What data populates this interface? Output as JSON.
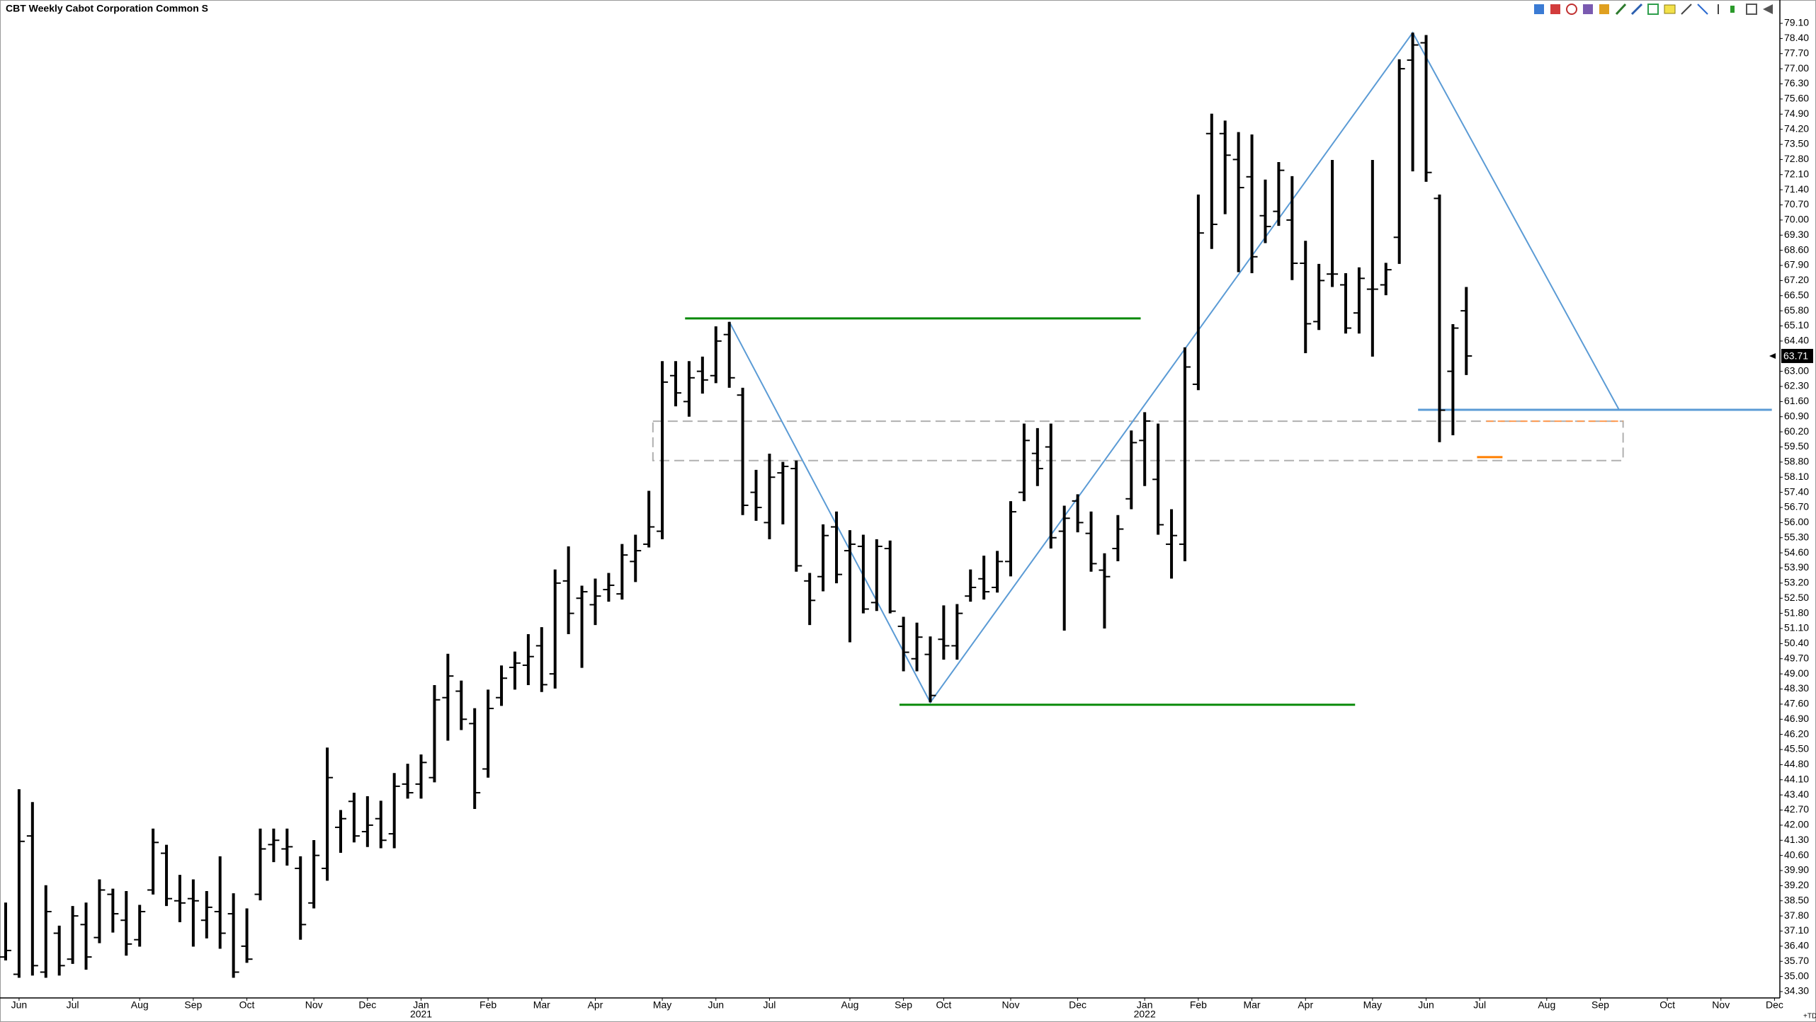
{
  "chart_data": {
    "type": "ohlc",
    "title": "CBT Weekly Cabot Corporation Common S",
    "corner_label": "+TD",
    "color": "#000000",
    "categories": [
      null,
      "Jun",
      null,
      null,
      null,
      "Jul",
      null,
      null,
      null,
      null,
      "Aug",
      null,
      null,
      null,
      "Sep",
      null,
      null,
      null,
      "Oct",
      null,
      null,
      null,
      null,
      "Nov",
      null,
      null,
      null,
      "Dec",
      null,
      null,
      null,
      "Jan",
      null,
      null,
      null,
      null,
      "Feb",
      null,
      null,
      null,
      "Mar",
      null,
      null,
      null,
      "Apr",
      null,
      null,
      null,
      null,
      "May",
      null,
      null,
      null,
      "Jun",
      null,
      null,
      null,
      "Jul",
      null,
      null,
      null,
      null,
      null,
      "Aug",
      null,
      null,
      null,
      "Sep",
      null,
      null,
      "Oct",
      null,
      null,
      null,
      null,
      "Nov",
      null,
      null,
      null,
      null,
      "Dec",
      null,
      null,
      null,
      null,
      "Jan",
      null,
      null,
      null,
      "Feb",
      null,
      null,
      null,
      "Mar",
      null,
      null,
      null,
      "Apr",
      null,
      null,
      null,
      null,
      "May",
      null,
      null,
      null,
      "Jun",
      null,
      null,
      null,
      "Jul",
      null,
      null,
      null,
      null,
      "Aug",
      null,
      null,
      null,
      "Sep",
      null,
      null,
      null,
      null,
      "Oct",
      null,
      null,
      null,
      "Nov",
      null,
      null,
      null,
      "Dec"
    ],
    "year_labels": [
      null,
      null,
      null,
      null,
      null,
      null,
      null,
      null,
      null,
      null,
      null,
      null,
      null,
      null,
      null,
      null,
      null,
      null,
      null,
      null,
      null,
      null,
      null,
      null,
      null,
      null,
      null,
      null,
      null,
      null,
      null,
      "2021",
      null,
      null,
      null,
      null,
      null,
      null,
      null,
      null,
      null,
      null,
      null,
      null,
      null,
      null,
      null,
      null,
      null,
      null,
      null,
      null,
      null,
      null,
      null,
      null,
      null,
      null,
      null,
      null,
      null,
      null,
      null,
      null,
      null,
      null,
      null,
      null,
      null,
      null,
      null,
      null,
      null,
      null,
      null,
      null,
      null,
      null,
      null,
      null,
      null,
      null,
      null,
      null,
      null,
      "2022",
      null,
      null,
      null,
      null,
      null,
      null,
      null,
      null,
      null,
      null,
      null,
      null,
      null,
      null,
      null,
      null,
      null,
      null,
      null,
      null,
      null,
      null,
      null,
      null,
      null,
      null,
      null,
      null,
      null,
      null,
      null,
      null,
      null,
      null,
      null,
      null,
      null,
      null,
      null,
      null,
      null,
      null,
      null,
      null,
      null,
      null,
      null
    ],
    "open": [
      35.9,
      35.1,
      41.5,
      35.2,
      37.0,
      35.8,
      37.4,
      36.8,
      38.8,
      37.6,
      36.7,
      39.0,
      40.7,
      38.5,
      38.6,
      37.6,
      38.0,
      37.9,
      36.4,
      38.8,
      41.1,
      40.9,
      40.0,
      38.4,
      40.0,
      41.9,
      43.1,
      41.7,
      42.3,
      41.6,
      43.9,
      43.9,
      44.2,
      47.9,
      48.2,
      46.7,
      44.6,
      47.9,
      49.3,
      49.4,
      50.3,
      49.0,
      53.3,
      52.5,
      52.2,
      52.9,
      52.7,
      54.2,
      55.0,
      55.6,
      62.8,
      61.6,
      63.0,
      62.8,
      64.7,
      61.9,
      57.4,
      56.0,
      58.3,
      58.5,
      53.3,
      53.5,
      55.8,
      54.7,
      54.9,
      52.3,
      54.8,
      51.2,
      49.7,
      49.9,
      50.6,
      50.3,
      52.6,
      53.4,
      53.0,
      54.2,
      57.4,
      59.2,
      59.5,
      55.6,
      57.0,
      55.5,
      53.8,
      54.8,
      57.1,
      59.8,
      58.0,
      55.0,
      55.0,
      62.4,
      74.0,
      74.0,
      72.8,
      72.0,
      70.2,
      70.4,
      70.0,
      68.0,
      65.3,
      67.5,
      67.0,
      65.7,
      66.8,
      67.0,
      69.2,
      77.4,
      78.2,
      71.0,
      63.0,
      65.8,
      null,
      null,
      null,
      null,
      null,
      null,
      null,
      null,
      null,
      null,
      null,
      null,
      null,
      null,
      null,
      null,
      null,
      null,
      null,
      null,
      null,
      null,
      null
    ],
    "high": [
      38.42,
      43.66,
      43.07,
      39.22,
      37.35,
      38.26,
      38.42,
      39.49,
      39.06,
      38.95,
      38.31,
      41.84,
      41.09,
      39.7,
      39.49,
      38.95,
      40.56,
      38.85,
      38.15,
      41.84,
      41.84,
      41.84,
      40.56,
      41.31,
      45.59,
      42.7,
      43.5,
      43.34,
      43.13,
      44.41,
      44.84,
      45.27,
      48.48,
      49.93,
      48.69,
      47.41,
      48.27,
      49.39,
      50.03,
      50.84,
      51.16,
      53.83,
      54.9,
      53.08,
      53.41,
      53.67,
      55.01,
      55.44,
      57.47,
      63.47,
      63.47,
      63.47,
      63.68,
      65.08,
      65.29,
      62.24,
      58.44,
      59.19,
      58.81,
      58.87,
      53.67,
      55.92,
      56.51,
      55.65,
      55.44,
      55.23,
      55.17,
      51.64,
      51.37,
      50.73,
      52.17,
      52.23,
      53.83,
      54.47,
      54.69,
      56.99,
      60.58,
      60.37,
      60.58,
      56.78,
      57.31,
      56.51,
      54.58,
      56.35,
      60.26,
      61.11,
      60.58,
      56.62,
      64.11,
      71.18,
      74.92,
      74.6,
      74.07,
      73.96,
      71.87,
      72.68,
      72.03,
      69.04,
      67.97,
      72.78,
      67.54,
      67.81,
      72.78,
      68.02,
      77.44,
      78.67,
      78.56,
      71.18,
      65.18,
      66.9,
      null,
      null,
      null,
      null,
      null,
      null,
      null,
      null,
      null,
      null,
      null,
      null,
      null,
      null,
      null,
      null,
      null,
      null,
      null,
      null,
      null,
      null,
      null
    ],
    "low": [
      35.74,
      34.94,
      35.04,
      34.94,
      35.04,
      35.58,
      35.31,
      36.54,
      37.03,
      35.96,
      36.38,
      38.79,
      38.26,
      37.51,
      36.38,
      36.76,
      36.28,
      34.94,
      35.63,
      38.52,
      40.29,
      40.13,
      36.7,
      38.15,
      39.43,
      40.72,
      41.2,
      40.99,
      40.93,
      40.93,
      43.23,
      43.23,
      43.98,
      45.91,
      46.4,
      42.75,
      44.2,
      47.52,
      48.27,
      48.48,
      48.16,
      48.32,
      50.84,
      49.28,
      51.26,
      52.34,
      52.44,
      53.25,
      54.85,
      55.23,
      61.38,
      60.9,
      61.97,
      62.45,
      62.24,
      56.35,
      56.08,
      55.23,
      55.92,
      53.73,
      51.26,
      52.82,
      53.19,
      50.46,
      51.8,
      51.91,
      51.8,
      49.12,
      49.12,
      47.68,
      49.66,
      49.66,
      52.34,
      52.44,
      52.76,
      53.51,
      56.99,
      57.69,
      54.8,
      51.0,
      55.55,
      53.73,
      51.1,
      54.21,
      56.62,
      57.69,
      55.44,
      53.41,
      54.21,
      62.13,
      68.66,
      70.27,
      67.59,
      67.54,
      68.93,
      69.73,
      67.22,
      63.84,
      64.91,
      66.9,
      64.75,
      64.75,
      63.68,
      66.52,
      67.97,
      72.25,
      71.77,
      59.72,
      60.04,
      62.83,
      null,
      null,
      null,
      null,
      null,
      null,
      null,
      null,
      null,
      null,
      null,
      null,
      null,
      null,
      null,
      null,
      null,
      null,
      null,
      null,
      null,
      null,
      null
    ],
    "close": [
      36.2,
      41.25,
      35.5,
      38.0,
      35.5,
      37.8,
      35.9,
      39.0,
      37.9,
      36.5,
      38.0,
      41.2,
      38.6,
      38.4,
      38.5,
      38.2,
      37.0,
      35.2,
      35.8,
      40.9,
      41.3,
      41.0,
      37.4,
      40.6,
      44.2,
      42.3,
      41.5,
      42.0,
      41.3,
      43.8,
      43.5,
      44.9,
      47.8,
      48.9,
      46.9,
      43.5,
      47.4,
      48.8,
      49.5,
      49.8,
      48.5,
      53.2,
      51.8,
      52.8,
      52.6,
      53.1,
      54.5,
      54.7,
      55.8,
      62.5,
      62.0,
      62.7,
      62.6,
      64.4,
      62.7,
      56.8,
      56.7,
      58.1,
      58.6,
      54.0,
      52.4,
      55.4,
      53.6,
      55.0,
      52.0,
      54.9,
      51.9,
      50.0,
      50.7,
      48.0,
      50.3,
      51.8,
      53.0,
      52.8,
      54.2,
      56.5,
      59.8,
      58.5,
      55.3,
      56.2,
      56.0,
      54.1,
      53.5,
      55.7,
      59.7,
      60.7,
      55.9,
      55.4,
      63.2,
      69.4,
      69.8,
      73.0,
      71.5,
      68.3,
      69.7,
      72.3,
      68.0,
      65.2,
      67.2,
      67.5,
      65.0,
      67.3,
      66.8,
      67.7,
      77.0,
      78.1,
      72.2,
      61.2,
      65.0,
      63.71,
      null,
      null,
      null,
      null,
      null,
      null,
      null,
      null,
      null,
      null,
      null,
      null,
      null,
      null,
      null,
      null,
      null,
      null,
      null,
      null,
      null,
      null,
      null
    ],
    "ylim": [
      34.3,
      79.1
    ],
    "yticks": [
      {
        "value": 34.3,
        "label": "34.30"
      },
      {
        "value": 35.0,
        "label": "35.00"
      },
      {
        "value": 35.7,
        "label": "35.70"
      },
      {
        "value": 36.4,
        "label": "36.40"
      },
      {
        "value": 37.1,
        "label": "37.10"
      },
      {
        "value": 37.8,
        "label": "37.80"
      },
      {
        "value": 38.5,
        "label": "38.50"
      },
      {
        "value": 39.2,
        "label": "39.20"
      },
      {
        "value": 39.9,
        "label": "39.90"
      },
      {
        "value": 40.6,
        "label": "40.60"
      },
      {
        "value": 41.3,
        "label": "41.30"
      },
      {
        "value": 42.0,
        "label": "42.00"
      },
      {
        "value": 42.7,
        "label": "42.70"
      },
      {
        "value": 43.4,
        "label": "43.40"
      },
      {
        "value": 44.1,
        "label": "44.10"
      },
      {
        "value": 44.8,
        "label": "44.80"
      },
      {
        "value": 45.5,
        "label": "45.50"
      },
      {
        "value": 46.2,
        "label": "46.20"
      },
      {
        "value": 46.9,
        "label": "46.90"
      },
      {
        "value": 47.6,
        "label": "47.60"
      },
      {
        "value": 48.3,
        "label": "48.30"
      },
      {
        "value": 49.0,
        "label": "49.00"
      },
      {
        "value": 49.7,
        "label": "49.70"
      },
      {
        "value": 50.4,
        "label": "50.40"
      },
      {
        "value": 51.1,
        "label": "51.10"
      },
      {
        "value": 51.8,
        "label": "51.80"
      },
      {
        "value": 52.5,
        "label": "52.50"
      },
      {
        "value": 53.2,
        "label": "53.20"
      },
      {
        "value": 53.9,
        "label": "53.90"
      },
      {
        "value": 54.6,
        "label": "54.60"
      },
      {
        "value": 55.3,
        "label": "55.30"
      },
      {
        "value": 56.0,
        "label": "56.00"
      },
      {
        "value": 56.7,
        "label": "56.70"
      },
      {
        "value": 57.4,
        "label": "57.40"
      },
      {
        "value": 58.1,
        "label": "58.10"
      },
      {
        "value": 58.8,
        "label": "58.80"
      },
      {
        "value": 59.5,
        "label": "59.50"
      },
      {
        "value": 60.2,
        "label": "60.20"
      },
      {
        "value": 60.9,
        "label": "60.90"
      },
      {
        "value": 61.6,
        "label": "61.60"
      },
      {
        "value": 62.3,
        "label": "62.30"
      },
      {
        "value": 63.0,
        "label": "63.00"
      },
      {
        "value": 64.4,
        "label": "64.40"
      },
      {
        "value": 65.1,
        "label": "65.10"
      },
      {
        "value": 65.8,
        "label": "65.80"
      },
      {
        "value": 66.5,
        "label": "66.50"
      },
      {
        "value": 67.2,
        "label": "67.20"
      },
      {
        "value": 67.9,
        "label": "67.90"
      },
      {
        "value": 68.6,
        "label": "68.60"
      },
      {
        "value": 69.3,
        "label": "69.30"
      },
      {
        "value": 70.0,
        "label": "70.00"
      },
      {
        "value": 70.7,
        "label": "70.70"
      },
      {
        "value": 71.4,
        "label": "71.40"
      },
      {
        "value": 72.1,
        "label": "72.10"
      },
      {
        "value": 72.8,
        "label": "72.80"
      },
      {
        "value": 73.5,
        "label": "73.50"
      },
      {
        "value": 74.2,
        "label": "74.20"
      },
      {
        "value": 74.9,
        "label": "74.90"
      },
      {
        "value": 75.6,
        "label": "75.60"
      },
      {
        "value": 76.3,
        "label": "76.30"
      },
      {
        "value": 77.0,
        "label": "77.00"
      },
      {
        "value": 77.7,
        "label": "77.70"
      },
      {
        "value": 78.4,
        "label": "78.40"
      },
      {
        "value": 79.1,
        "label": "79.10"
      }
    ],
    "drawings": {
      "zigzag": {
        "color": "#5b9bd5",
        "x": [
          54,
          69,
          105,
          120.4
        ],
        "y": [
          65.29,
          47.68,
          78.67,
          61.22
        ]
      },
      "zone": {
        "color": "#b0b0b0",
        "x": [
          48.3,
          120.7
        ],
        "y": [
          58.87,
          60.69
        ]
      },
      "levels": [
        {
          "color": "#5b9bd5",
          "x": [
            105.4,
            131.8
          ],
          "y": 61.22,
          "dashed": false
        },
        {
          "color": "#0a8a0a",
          "x": [
            50.7,
            84.7
          ],
          "y": 65.45,
          "dashed": false
        },
        {
          "color": "#0a8a0a",
          "x": [
            66.7,
            100.7
          ],
          "y": 47.57,
          "dashed": false
        },
        {
          "color": "#ff7f00",
          "x": [
            109.8,
            111.7
          ],
          "y": 59.03,
          "dashed": false
        },
        {
          "color": "#ff9a50",
          "x": [
            110.5,
            120.7
          ],
          "y": 60.69,
          "dashed": true
        }
      ]
    }
  }
}
